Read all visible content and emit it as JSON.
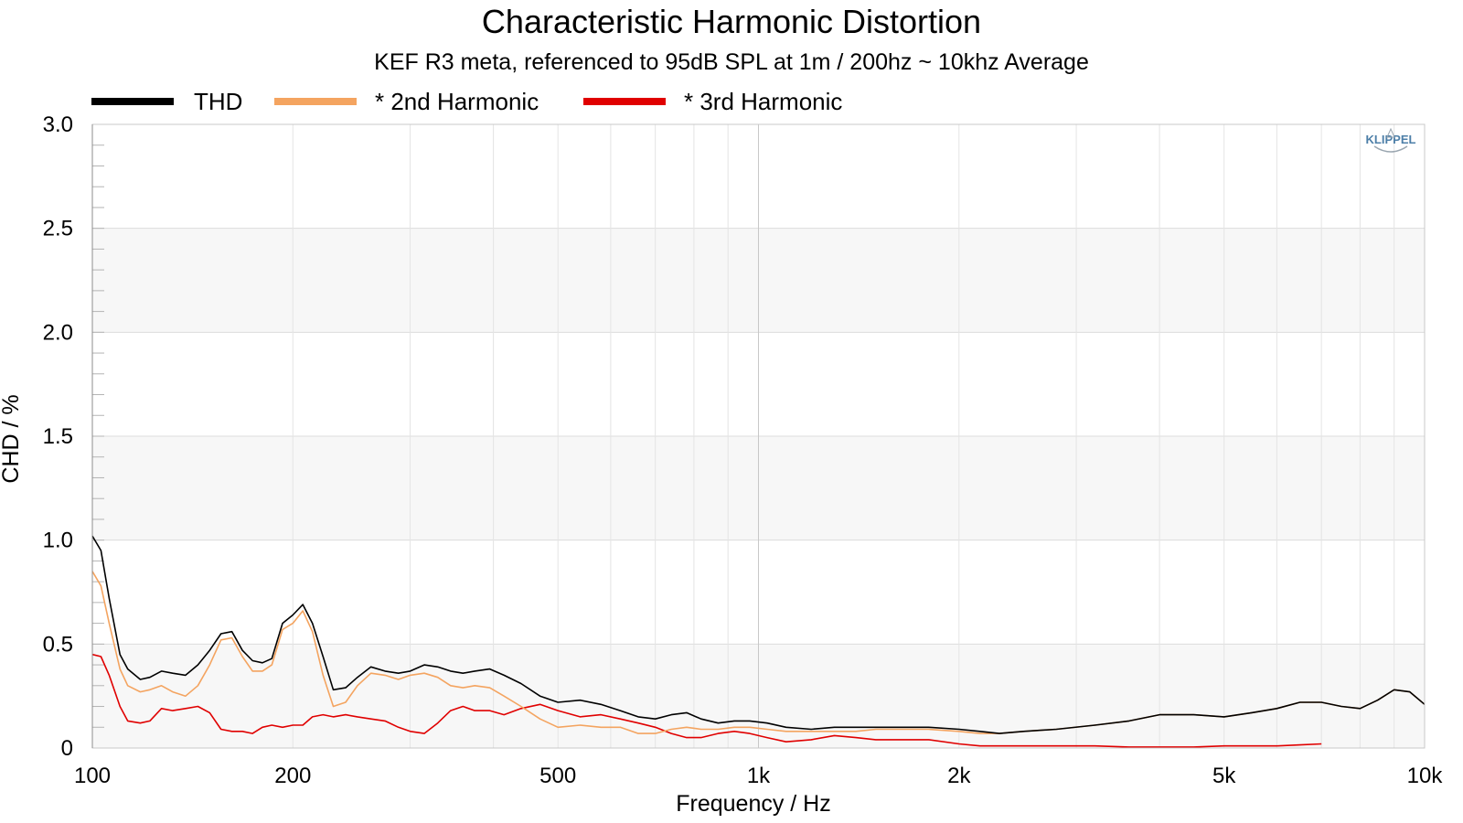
{
  "chart_data": {
    "type": "line",
    "title": "Characteristic Harmonic Distortion",
    "subtitle": "KEF R3 meta, referenced to 95dB SPL at 1m / 200hz ~ 10khz Average",
    "xlabel": "Frequency / Hz",
    "ylabel": "CHD / %",
    "xscale": "log",
    "xlim": [
      100,
      10000
    ],
    "ylim": [
      0,
      3.0
    ],
    "xticks": [
      100,
      200,
      500,
      1000,
      2000,
      5000,
      10000
    ],
    "xtick_labels": [
      "100",
      "200",
      "500",
      "1k",
      "2k",
      "5k",
      "10k"
    ],
    "yticks": [
      0,
      0.5,
      1.0,
      1.5,
      2.0,
      2.5,
      3.0
    ],
    "ytick_labels": [
      "0",
      "0.5",
      "1.0",
      "1.5",
      "2.0",
      "2.5",
      "3.0"
    ],
    "grid": true,
    "legend_position": "top-left",
    "logo_text": "KLIPPEL",
    "series": [
      {
        "name": "THD",
        "color": "#000000",
        "x": [
          100,
          103,
          106,
          110,
          113,
          118,
          122,
          127,
          132,
          138,
          144,
          150,
          156,
          162,
          168,
          174,
          180,
          186,
          193,
          200,
          207,
          214,
          222,
          230,
          240,
          250,
          262,
          275,
          288,
          300,
          315,
          330,
          345,
          360,
          375,
          395,
          415,
          440,
          470,
          500,
          540,
          580,
          620,
          660,
          700,
          740,
          780,
          820,
          870,
          920,
          970,
          1030,
          1100,
          1200,
          1300,
          1400,
          1500,
          1650,
          1800,
          2000,
          2150,
          2300,
          2500,
          2800,
          3200,
          3600,
          4000,
          4500,
          5000,
          5500,
          6000,
          6500,
          7000,
          7500,
          8000,
          8500,
          9000,
          9500,
          10000
        ],
        "y": [
          1.02,
          0.95,
          0.72,
          0.45,
          0.38,
          0.33,
          0.34,
          0.37,
          0.36,
          0.35,
          0.4,
          0.47,
          0.55,
          0.56,
          0.47,
          0.42,
          0.41,
          0.43,
          0.6,
          0.64,
          0.69,
          0.6,
          0.44,
          0.28,
          0.29,
          0.34,
          0.39,
          0.37,
          0.36,
          0.37,
          0.4,
          0.39,
          0.37,
          0.36,
          0.37,
          0.38,
          0.35,
          0.31,
          0.25,
          0.22,
          0.23,
          0.21,
          0.18,
          0.15,
          0.14,
          0.16,
          0.17,
          0.14,
          0.12,
          0.13,
          0.13,
          0.12,
          0.1,
          0.09,
          0.1,
          0.1,
          0.1,
          0.1,
          0.1,
          0.09,
          0.08,
          0.07,
          0.08,
          0.09,
          0.11,
          0.13,
          0.16,
          0.16,
          0.15,
          0.17,
          0.19,
          0.22,
          0.22,
          0.2,
          0.19,
          0.23,
          0.28,
          0.27,
          0.21
        ]
      },
      {
        "name": "* 2nd Harmonic",
        "color": "#f4a460",
        "x": [
          100,
          103,
          106,
          110,
          113,
          118,
          122,
          127,
          132,
          138,
          144,
          150,
          156,
          162,
          168,
          174,
          180,
          186,
          193,
          200,
          207,
          214,
          222,
          230,
          240,
          250,
          262,
          275,
          288,
          300,
          315,
          330,
          345,
          360,
          375,
          395,
          415,
          440,
          470,
          500,
          540,
          580,
          620,
          660,
          700,
          740,
          780,
          820,
          870,
          920,
          970,
          1030,
          1100,
          1200,
          1300,
          1400,
          1500,
          1650,
          1800,
          2000,
          2150,
          2300,
          2500,
          2800,
          3200,
          3600,
          4000,
          4500,
          5000,
          5500,
          6000,
          6500,
          7000,
          7500,
          8000,
          8500,
          9000,
          9500,
          10000
        ],
        "y": [
          0.85,
          0.78,
          0.6,
          0.38,
          0.3,
          0.27,
          0.28,
          0.3,
          0.27,
          0.25,
          0.3,
          0.4,
          0.52,
          0.53,
          0.44,
          0.37,
          0.37,
          0.4,
          0.57,
          0.6,
          0.66,
          0.56,
          0.35,
          0.2,
          0.22,
          0.3,
          0.36,
          0.35,
          0.33,
          0.35,
          0.36,
          0.34,
          0.3,
          0.29,
          0.3,
          0.29,
          0.25,
          0.2,
          0.14,
          0.1,
          0.11,
          0.1,
          0.1,
          0.07,
          0.07,
          0.09,
          0.1,
          0.09,
          0.09,
          0.1,
          0.1,
          0.09,
          0.08,
          0.08,
          0.08,
          0.08,
          0.09,
          0.09,
          0.09,
          0.08,
          0.07,
          0.07,
          0.08,
          0.09,
          0.11,
          0.13,
          0.16,
          0.16,
          0.15,
          0.17,
          0.19,
          0.22,
          0.22,
          0.2,
          0.19,
          0.23,
          0.28,
          0.27,
          0.21
        ]
      },
      {
        "name": "* 3rd Harmonic",
        "color": "#e00000",
        "x": [
          100,
          103,
          106,
          110,
          113,
          118,
          122,
          127,
          132,
          138,
          144,
          150,
          156,
          162,
          168,
          174,
          180,
          186,
          193,
          200,
          207,
          214,
          222,
          230,
          240,
          250,
          262,
          275,
          288,
          300,
          315,
          330,
          345,
          360,
          375,
          395,
          415,
          440,
          470,
          500,
          540,
          580,
          620,
          660,
          700,
          740,
          780,
          820,
          870,
          920,
          970,
          1030,
          1100,
          1200,
          1300,
          1400,
          1500,
          1650,
          1800,
          2000,
          2150,
          2300,
          2500,
          2800,
          3200,
          3600,
          4000,
          4500,
          5000,
          5500,
          6000,
          6500,
          7000
        ],
        "y": [
          0.45,
          0.44,
          0.35,
          0.2,
          0.13,
          0.12,
          0.13,
          0.19,
          0.18,
          0.19,
          0.2,
          0.17,
          0.09,
          0.08,
          0.08,
          0.07,
          0.1,
          0.11,
          0.1,
          0.11,
          0.11,
          0.15,
          0.16,
          0.15,
          0.16,
          0.15,
          0.14,
          0.13,
          0.1,
          0.08,
          0.07,
          0.12,
          0.18,
          0.2,
          0.18,
          0.18,
          0.16,
          0.19,
          0.21,
          0.18,
          0.15,
          0.16,
          0.14,
          0.12,
          0.1,
          0.07,
          0.05,
          0.05,
          0.07,
          0.08,
          0.07,
          0.05,
          0.03,
          0.04,
          0.06,
          0.05,
          0.04,
          0.04,
          0.04,
          0.02,
          0.01,
          0.01,
          0.01,
          0.01,
          0.01,
          0.005,
          0.005,
          0.005,
          0.01,
          0.01,
          0.01,
          0.015,
          0.02
        ]
      }
    ]
  }
}
